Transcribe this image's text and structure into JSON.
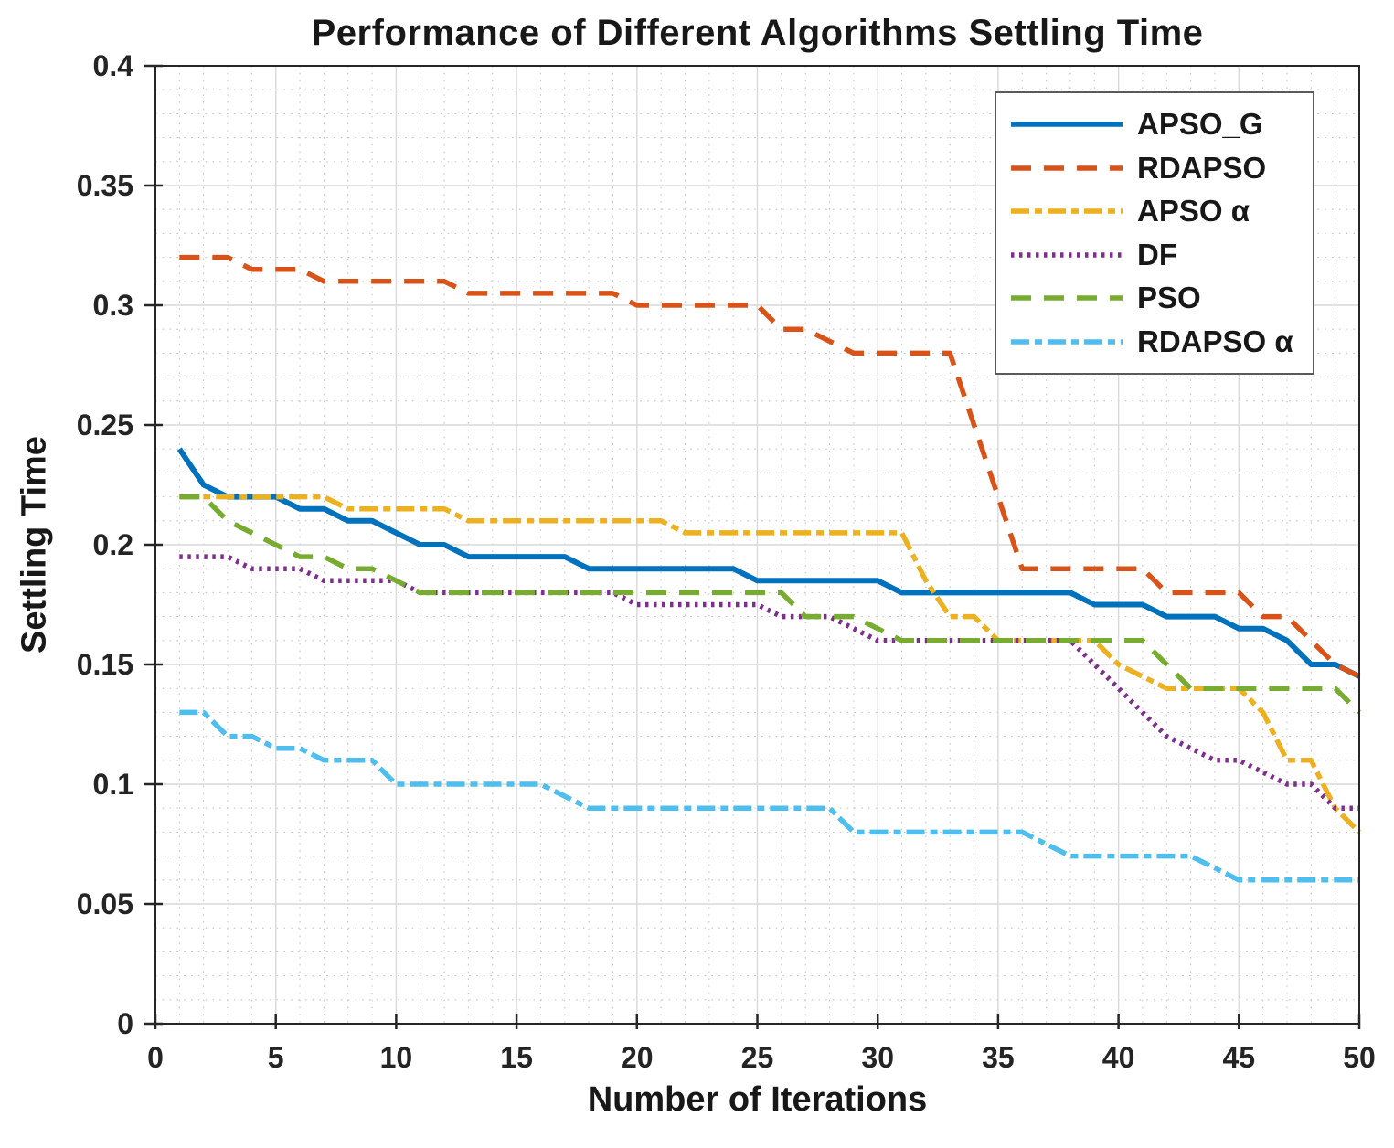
{
  "chart_data": {
    "type": "line",
    "title": "Performance of Different Algorithms Settling Time",
    "xlabel": "Number of Iterations",
    "ylabel": "Settling Time",
    "xlim": [
      0,
      50
    ],
    "ylim": [
      0,
      0.4
    ],
    "x_ticks": {
      "values": [
        0,
        5,
        10,
        15,
        20,
        25,
        30,
        35,
        40,
        45,
        50
      ],
      "labels": [
        "0",
        "5",
        "10",
        "15",
        "20",
        "25",
        "30",
        "35",
        "40",
        "45",
        "50"
      ]
    },
    "y_ticks": {
      "values": [
        0,
        0.05,
        0.1,
        0.15,
        0.2,
        0.25,
        0.3,
        0.35,
        0.4
      ],
      "labels": [
        "0",
        "0.05",
        "0.1",
        "0.15",
        "0.2",
        "0.25",
        "0.3",
        "0.35",
        "0.4"
      ]
    },
    "grid": "major solid + minor dotted",
    "axis_color": "#262626",
    "legend_position": "top-right",
    "x": [
      1,
      2,
      3,
      4,
      5,
      6,
      7,
      8,
      9,
      10,
      11,
      12,
      13,
      14,
      15,
      16,
      17,
      18,
      19,
      20,
      21,
      22,
      23,
      24,
      25,
      26,
      27,
      28,
      29,
      30,
      31,
      32,
      33,
      34,
      35,
      36,
      37,
      38,
      39,
      40,
      41,
      42,
      43,
      44,
      45,
      46,
      47,
      48,
      49,
      50
    ],
    "series": [
      {
        "name": "APSO_G",
        "color": "#0072BD",
        "style": "solid",
        "values": [
          0.24,
          0.225,
          0.22,
          0.22,
          0.22,
          0.215,
          0.215,
          0.21,
          0.21,
          0.205,
          0.2,
          0.2,
          0.195,
          0.195,
          0.195,
          0.195,
          0.195,
          0.19,
          0.19,
          0.19,
          0.19,
          0.19,
          0.19,
          0.19,
          0.185,
          0.185,
          0.185,
          0.185,
          0.185,
          0.185,
          0.18,
          0.18,
          0.18,
          0.18,
          0.18,
          0.18,
          0.18,
          0.18,
          0.175,
          0.175,
          0.175,
          0.17,
          0.17,
          0.17,
          0.165,
          0.165,
          0.16,
          0.15,
          0.15,
          0.145
        ]
      },
      {
        "name": "RDAPSO",
        "color": "#D95319",
        "style": "dashed",
        "values": [
          0.32,
          0.32,
          0.32,
          0.315,
          0.315,
          0.315,
          0.31,
          0.31,
          0.31,
          0.31,
          0.31,
          0.31,
          0.305,
          0.305,
          0.305,
          0.305,
          0.305,
          0.305,
          0.305,
          0.3,
          0.3,
          0.3,
          0.3,
          0.3,
          0.3,
          0.29,
          0.29,
          0.285,
          0.28,
          0.28,
          0.28,
          0.28,
          0.28,
          0.25,
          0.22,
          0.19,
          0.19,
          0.19,
          0.19,
          0.19,
          0.19,
          0.18,
          0.18,
          0.18,
          0.18,
          0.17,
          0.17,
          0.16,
          0.15,
          0.145
        ]
      },
      {
        "name": "APSO α",
        "color": "#EDB120",
        "style": "dashdot",
        "values": [
          0.22,
          0.22,
          0.22,
          0.22,
          0.22,
          0.22,
          0.22,
          0.215,
          0.215,
          0.215,
          0.215,
          0.215,
          0.21,
          0.21,
          0.21,
          0.21,
          0.21,
          0.21,
          0.21,
          0.21,
          0.21,
          0.205,
          0.205,
          0.205,
          0.205,
          0.205,
          0.205,
          0.205,
          0.205,
          0.205,
          0.205,
          0.185,
          0.17,
          0.17,
          0.16,
          0.16,
          0.16,
          0.16,
          0.16,
          0.15,
          0.145,
          0.14,
          0.14,
          0.14,
          0.14,
          0.13,
          0.11,
          0.11,
          0.09,
          0.08
        ]
      },
      {
        "name": "DF",
        "color": "#7E2F8E",
        "style": "dotted",
        "values": [
          0.195,
          0.195,
          0.195,
          0.19,
          0.19,
          0.19,
          0.185,
          0.185,
          0.185,
          0.185,
          0.18,
          0.18,
          0.18,
          0.18,
          0.18,
          0.18,
          0.18,
          0.18,
          0.18,
          0.175,
          0.175,
          0.175,
          0.175,
          0.175,
          0.175,
          0.17,
          0.17,
          0.17,
          0.165,
          0.16,
          0.16,
          0.16,
          0.16,
          0.16,
          0.16,
          0.16,
          0.16,
          0.16,
          0.15,
          0.14,
          0.13,
          0.12,
          0.115,
          0.11,
          0.11,
          0.105,
          0.1,
          0.1,
          0.09,
          0.09
        ]
      },
      {
        "name": "PSO",
        "color": "#77AC30",
        "style": "dashed",
        "values": [
          0.22,
          0.22,
          0.21,
          0.205,
          0.2,
          0.195,
          0.195,
          0.19,
          0.19,
          0.185,
          0.18,
          0.18,
          0.18,
          0.18,
          0.18,
          0.18,
          0.18,
          0.18,
          0.18,
          0.18,
          0.18,
          0.18,
          0.18,
          0.18,
          0.18,
          0.18,
          0.17,
          0.17,
          0.17,
          0.165,
          0.16,
          0.16,
          0.16,
          0.16,
          0.16,
          0.16,
          0.16,
          0.16,
          0.16,
          0.16,
          0.16,
          0.15,
          0.14,
          0.14,
          0.14,
          0.14,
          0.14,
          0.14,
          0.14,
          0.13
        ]
      },
      {
        "name": "RDAPSO α",
        "color": "#4DBEEE",
        "style": "dashdot",
        "values": [
          0.13,
          0.13,
          0.12,
          0.12,
          0.115,
          0.115,
          0.11,
          0.11,
          0.11,
          0.1,
          0.1,
          0.1,
          0.1,
          0.1,
          0.1,
          0.1,
          0.095,
          0.09,
          0.09,
          0.09,
          0.09,
          0.09,
          0.09,
          0.09,
          0.09,
          0.09,
          0.09,
          0.09,
          0.08,
          0.08,
          0.08,
          0.08,
          0.08,
          0.08,
          0.08,
          0.08,
          0.075,
          0.07,
          0.07,
          0.07,
          0.07,
          0.07,
          0.07,
          0.065,
          0.06,
          0.06,
          0.06,
          0.06,
          0.06,
          0.06
        ]
      }
    ]
  }
}
